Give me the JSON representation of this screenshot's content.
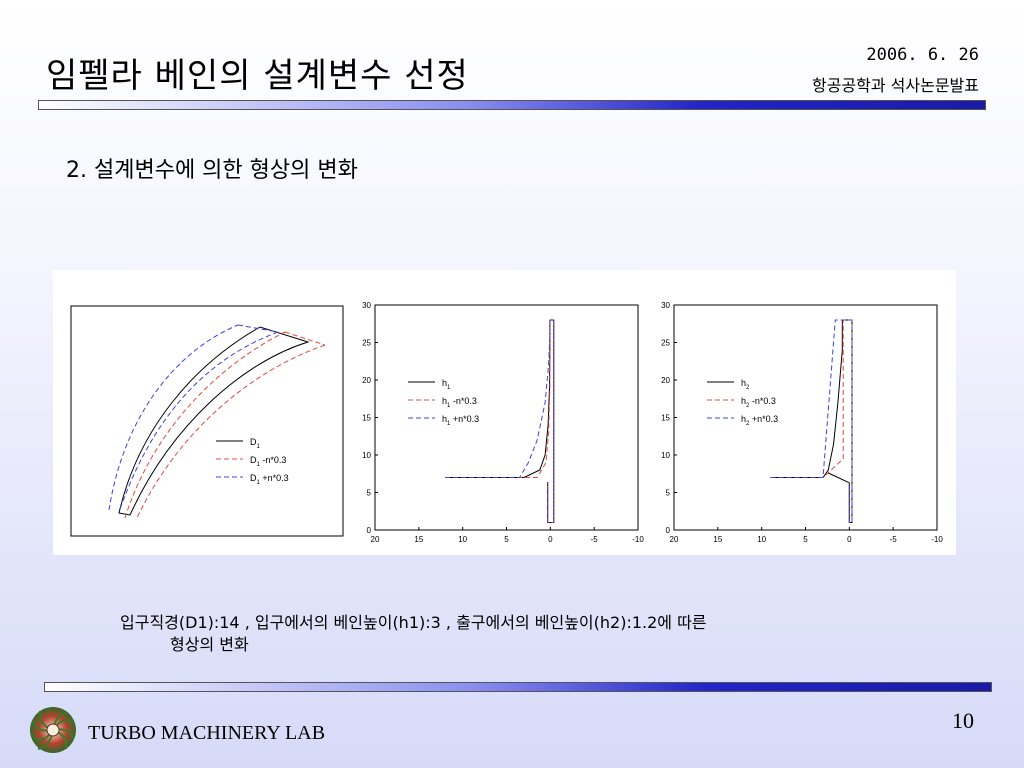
{
  "header": {
    "title": "임펠라 베인의 설계변수 선정",
    "date": "2006. 6. 26",
    "subtitle": "항공공학과 석사논문발표"
  },
  "section": {
    "heading": "2. 설계변수에 의한 형상의 변화"
  },
  "caption": {
    "line1": "입구직경(D1):14 , 입구에서의 베인높이(h1):3 , 출구에서의 베인높이(h2):1.2에 따른",
    "line2": "형상의 변화"
  },
  "footer": {
    "lab": "TURBO MACHINERY LAB",
    "page": "10"
  },
  "colors": {
    "base": "#000000",
    "minus": "#e8463c",
    "plus": "#3a44e0"
  },
  "chart_data": [
    {
      "type": "line",
      "title": "",
      "axes": "none",
      "series": [
        {
          "name": "D1",
          "legend_main": "D",
          "legend_sub": "1",
          "legend_suffix": "",
          "style": "solid",
          "color": "#000000"
        },
        {
          "name": "D1 -n*0.3",
          "legend_main": "D",
          "legend_sub": "1",
          "legend_suffix": " -n*0.3",
          "style": "dashed",
          "color": "#e8463c"
        },
        {
          "name": "D1 +n*0.3",
          "legend_main": "D",
          "legend_sub": "1",
          "legend_suffix": " +n*0.3",
          "style": "dashed",
          "color": "#3a44e0"
        }
      ]
    },
    {
      "type": "line",
      "xlim": [
        20,
        -10
      ],
      "ylim": [
        0,
        30
      ],
      "xticks": [
        20,
        15,
        10,
        5,
        0,
        -5,
        -10
      ],
      "yticks": [
        0,
        5,
        10,
        15,
        20,
        25,
        30
      ],
      "series": [
        {
          "name": "h1",
          "legend_main": "h",
          "legend_sub": "1",
          "legend_suffix": "",
          "style": "solid",
          "color": "#000000",
          "x": [
            12,
            3.0,
            1.2,
            0.6,
            0.25,
            0.1,
            0.05,
            0.05,
            -0.4,
            -0.4,
            0.3,
            0.3
          ],
          "y": [
            7,
            7,
            8.0,
            10.0,
            14.0,
            19.0,
            24.0,
            28,
            28,
            1,
            1,
            6.4
          ]
        },
        {
          "name": "h1 -n*0.3",
          "legend_main": "h",
          "legend_sub": "1",
          "legend_suffix": " -n*0.3",
          "style": "dashed",
          "color": "#e8463c",
          "x": [
            12,
            1.5,
            0.5,
            0.2,
            0.05,
            0.05,
            -0.4,
            -0.4,
            0.3,
            0.3
          ],
          "y": [
            7,
            7,
            9.0,
            13.0,
            19.0,
            28,
            28,
            1,
            1,
            6.4
          ]
        },
        {
          "name": "h1 +n*0.3",
          "legend_main": "h",
          "legend_sub": "1",
          "legend_suffix": " +n*0.3",
          "style": "dashed",
          "color": "#3a44e0",
          "x": [
            12,
            3.5,
            2.5,
            1.5,
            0.6,
            0.2,
            0.05,
            0.05,
            -0.4,
            -0.4,
            0.3,
            0.3
          ],
          "y": [
            7,
            7,
            9.0,
            12.0,
            17.0,
            22.0,
            26.0,
            28,
            28,
            1,
            1,
            6.4
          ]
        }
      ]
    },
    {
      "type": "line",
      "xlim": [
        20,
        -10
      ],
      "ylim": [
        0,
        30
      ],
      "xticks": [
        20,
        15,
        10,
        5,
        0,
        -5,
        -10
      ],
      "yticks": [
        0,
        5,
        10,
        15,
        20,
        25,
        30
      ],
      "series": [
        {
          "name": "h2",
          "legend_main": "h",
          "legend_sub": "2",
          "legend_suffix": "",
          "style": "solid",
          "color": "#000000",
          "x": [
            9,
            3.0,
            2.4,
            1.8,
            1.3,
            0.8,
            0.8,
            -0.3,
            -0.3,
            0,
            0,
            2.4
          ],
          "y": [
            7,
            7,
            8.0,
            11.5,
            17.0,
            24.0,
            28,
            28,
            1,
            1,
            6.3,
            7.6
          ]
        },
        {
          "name": "h2 -n*0.3",
          "legend_main": "h",
          "legend_sub": "2",
          "legend_suffix": " -n*0.3",
          "style": "dashed",
          "color": "#e8463c",
          "x": [
            9,
            3.0,
            0.7,
            0.7,
            -0.3,
            -0.3,
            0,
            0
          ],
          "y": [
            7,
            7,
            9.5,
            28,
            28,
            1,
            1,
            6.3
          ]
        },
        {
          "name": "h2 +n*0.3",
          "legend_main": "h",
          "legend_sub": "2",
          "legend_suffix": " +n*0.3",
          "style": "dashed",
          "color": "#3a44e0",
          "x": [
            9,
            3.0,
            1.6,
            1.6,
            -0.3,
            -0.3,
            0,
            0
          ],
          "y": [
            7,
            7,
            28,
            28,
            28,
            1,
            1,
            6.3
          ]
        }
      ]
    }
  ]
}
